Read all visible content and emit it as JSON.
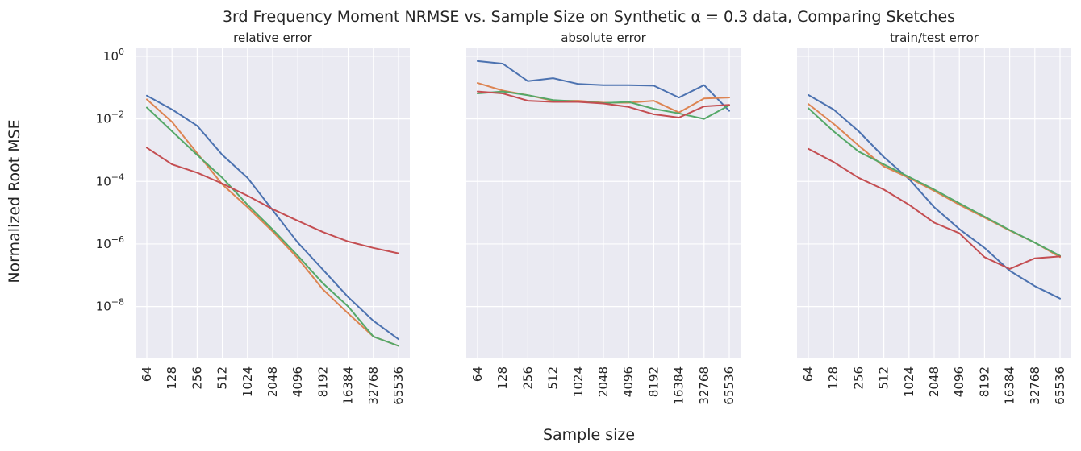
{
  "chart_data": {
    "type": "line",
    "title": "3rd Frequency Moment NRMSE vs. Sample Size on Synthetic α = 0.3 data, Comparing Sketches",
    "xlabel": "Sample size",
    "ylabel": "Normalized Root MSE",
    "x": [
      "64",
      "128",
      "256",
      "512",
      "1024",
      "2048",
      "4096",
      "8192",
      "16384",
      "32768",
      "65536"
    ],
    "yscale": "log",
    "yticks": [
      {
        "exp": 0,
        "base": "10",
        "sup": "0"
      },
      {
        "exp": -2,
        "base": "10",
        "sup": "−2"
      },
      {
        "exp": -4,
        "base": "10",
        "sup": "−4"
      },
      {
        "exp": -6,
        "base": "10",
        "sup": "−6"
      },
      {
        "exp": -8,
        "base": "10",
        "sup": "−8"
      }
    ],
    "ylim": [
      2.2e-10,
      1.8
    ],
    "grid": true,
    "sharey": true,
    "colors": [
      "#4c72b0",
      "#dd8452",
      "#55a868",
      "#c44e52"
    ],
    "panels": [
      {
        "title": "relative error",
        "series": [
          {
            "values": [
              0.055,
              0.02,
              0.006,
              0.0007,
              0.00013,
              1.2e-05,
              1.1e-06,
              1.5e-07,
              2e-08,
              3.5e-09,
              9e-10
            ]
          },
          {
            "values": [
              0.042,
              0.008,
              0.0008,
              8e-05,
              1.5e-05,
              2.5e-06,
              3.5e-07,
              3.5e-08,
              6e-09,
              1.1e-09,
              5.5e-10
            ]
          },
          {
            "values": [
              0.023,
              0.004,
              0.0007,
              0.00013,
              1.8e-05,
              2.9e-06,
              4.2e-07,
              5.5e-08,
              1e-08,
              1.1e-09,
              5.5e-10
            ]
          },
          {
            "values": [
              0.0012,
              0.00035,
              0.00019,
              8.5e-05,
              3.5e-05,
              1.3e-05,
              5.5e-06,
              2.4e-06,
              1.2e-06,
              7.5e-07,
              5e-07
            ]
          }
        ]
      },
      {
        "title": "absolute error",
        "series": [
          {
            "values": [
              0.7,
              0.58,
              0.16,
              0.2,
              0.13,
              0.12,
              0.12,
              0.115,
              0.048,
              0.12,
              0.018
            ]
          },
          {
            "values": [
              0.14,
              0.08,
              0.057,
              0.038,
              0.038,
              0.033,
              0.033,
              0.038,
              0.016,
              0.045,
              0.048
            ]
          },
          {
            "values": [
              0.065,
              0.075,
              0.057,
              0.04,
              0.036,
              0.032,
              0.035,
              0.021,
              0.015,
              0.01,
              0.027
            ]
          },
          {
            "values": [
              0.075,
              0.065,
              0.038,
              0.035,
              0.035,
              0.031,
              0.024,
              0.014,
              0.011,
              0.025,
              0.028
            ]
          }
        ]
      },
      {
        "title": "train/test error",
        "series": [
          {
            "values": [
              0.058,
              0.02,
              0.004,
              0.0006,
              0.00012,
              1.5e-05,
              3e-06,
              7.5e-07,
              1.4e-07,
              4.5e-08,
              1.8e-08
            ]
          },
          {
            "values": [
              0.03,
              0.007,
              0.0014,
              0.0003,
              0.00013,
              5e-05,
              1.8e-05,
              7e-06,
              2.7e-06,
              1.1e-06,
              3.8e-07
            ]
          },
          {
            "values": [
              0.022,
              0.004,
              0.0009,
              0.00035,
              0.00014,
              5.5e-05,
              2e-05,
              7.5e-06,
              2.8e-06,
              1.1e-06,
              4.2e-07
            ]
          },
          {
            "values": [
              0.0011,
              0.00042,
              0.00013,
              5.5e-05,
              1.8e-05,
              4.8e-06,
              2.2e-06,
              3.8e-07,
              1.6e-07,
              3.5e-07,
              4e-07
            ]
          }
        ]
      }
    ]
  }
}
